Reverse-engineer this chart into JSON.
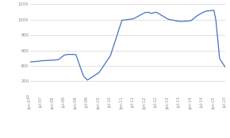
{
  "x_labels": [
    "Jan-07",
    "Jul-07",
    "Jan-08",
    "Jul-08",
    "Jan-09",
    "Jul-09",
    "Jan-10",
    "Jul-10",
    "Jan-11",
    "Jul-11",
    "Jan-12",
    "Jul-12",
    "Jan-13",
    "Jul-13",
    "Jan-14",
    "Jul-14",
    "Jan-15",
    "Jul-15"
  ],
  "line_color": "#4472C4",
  "line_width": 0.9,
  "ylim": [
    0,
    1200
  ],
  "yticks": [
    0,
    200,
    400,
    600,
    800,
    1000,
    1200
  ],
  "background_color": "#ffffff",
  "grid_color": "#d4d4d4",
  "anchors_x": [
    0,
    3,
    6,
    9,
    12,
    15,
    18,
    20,
    22,
    24,
    26,
    28,
    30,
    36,
    42,
    48,
    51,
    54,
    57,
    60,
    62,
    63,
    66,
    72,
    75,
    78,
    81,
    84,
    87,
    90,
    92,
    94,
    96,
    97,
    99,
    102
  ],
  "anchors_y": [
    450,
    455,
    465,
    470,
    472,
    480,
    540,
    548,
    548,
    545,
    400,
    265,
    215,
    310,
    530,
    990,
    1000,
    1010,
    1050,
    1090,
    1095,
    1080,
    1095,
    1005,
    990,
    975,
    978,
    985,
    1045,
    1090,
    1110,
    1115,
    1120,
    1000,
    490,
    380
  ]
}
